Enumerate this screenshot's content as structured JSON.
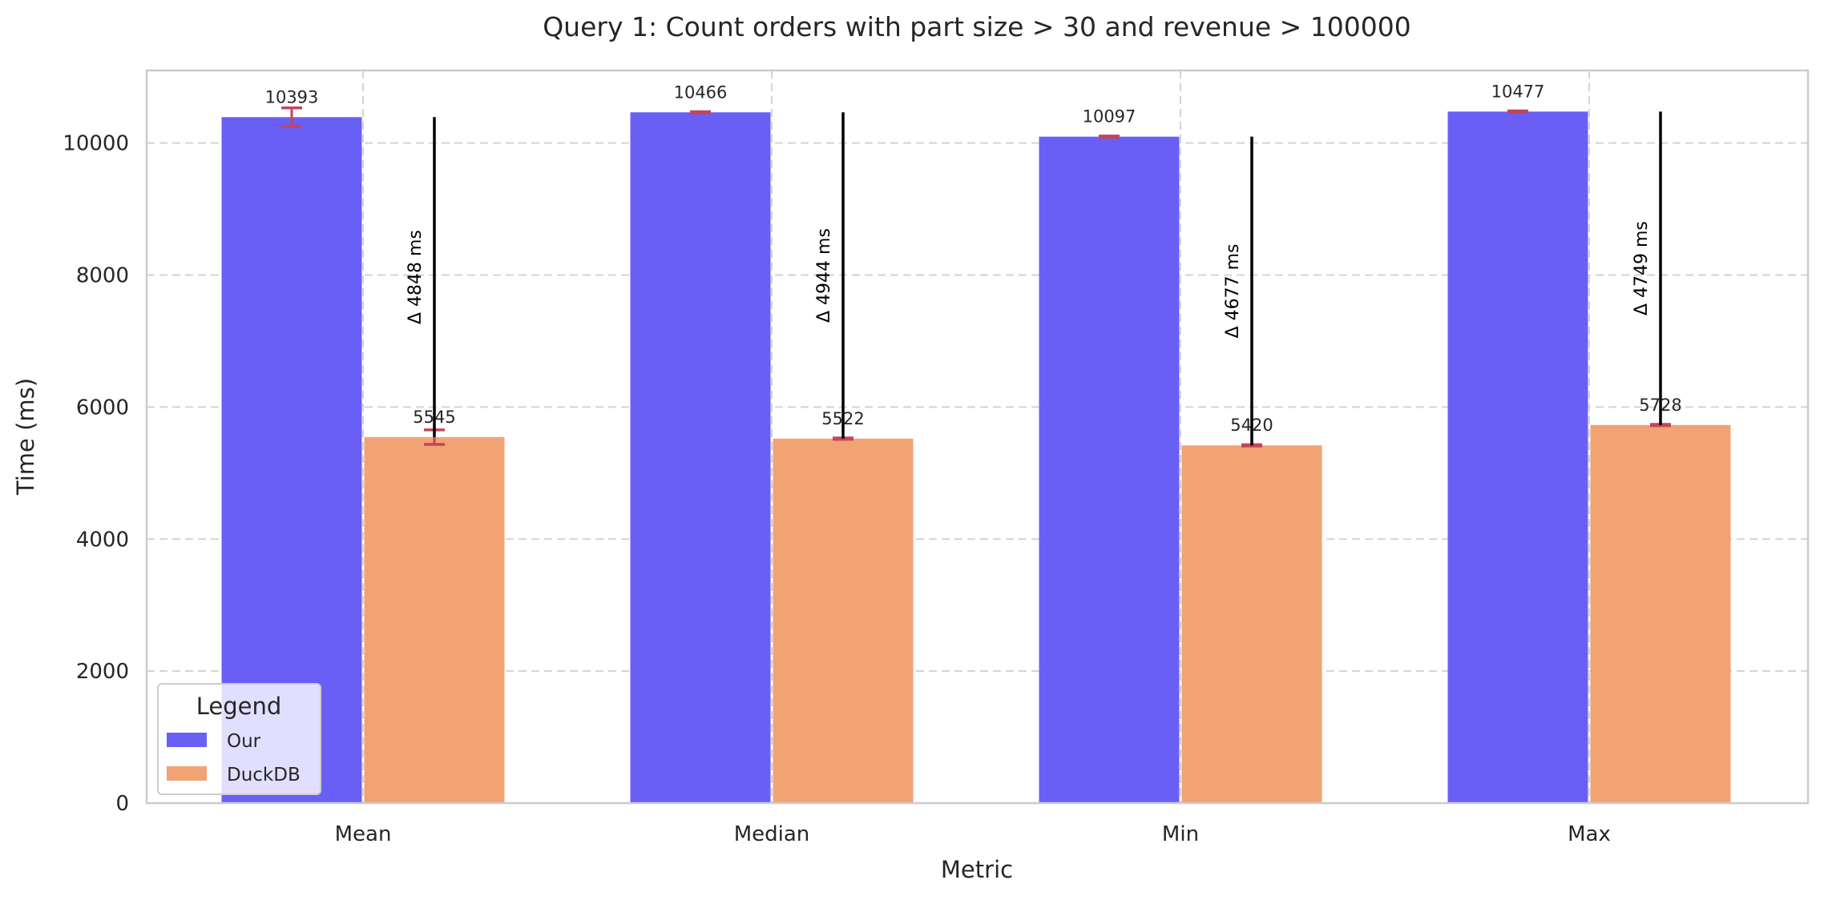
{
  "chart_data": {
    "type": "bar",
    "title": "Query 1: Count orders with part size > 30 and revenue > 100000",
    "xlabel": "Metric",
    "ylabel": "Time (ms)",
    "categories": [
      "Mean",
      "Median",
      "Min",
      "Max"
    ],
    "ylim": [
      0,
      11100
    ],
    "yticks": [
      0,
      2000,
      4000,
      6000,
      8000,
      10000
    ],
    "grid": true,
    "legend": {
      "title": "Legend",
      "placement": "lower-left"
    },
    "series": [
      {
        "name": "Our",
        "color": "#6a5ff5",
        "values": [
          10393,
          10466,
          10097,
          10477
        ],
        "errors": [
          140,
          10,
          10,
          10
        ]
      },
      {
        "name": "DuckDB",
        "color": "#f1a374",
        "values": [
          5545,
          5522,
          5420,
          5728
        ],
        "errors": [
          110,
          10,
          10,
          10
        ]
      }
    ],
    "bar_labels": {
      "Our": [
        "10393",
        "10466",
        "10097",
        "10477"
      ],
      "DuckDB": [
        "5545",
        "5522",
        "5420",
        "5728"
      ]
    },
    "annotations": [
      "Δ 4848 ms",
      "Δ 4944 ms",
      "Δ 4677 ms",
      "Δ 4749 ms"
    ],
    "colors": {
      "error_bar": "#c4455a",
      "grid": "#d3d3d3",
      "delta_line": "#000000",
      "axes_edge": "#cccccc"
    }
  }
}
